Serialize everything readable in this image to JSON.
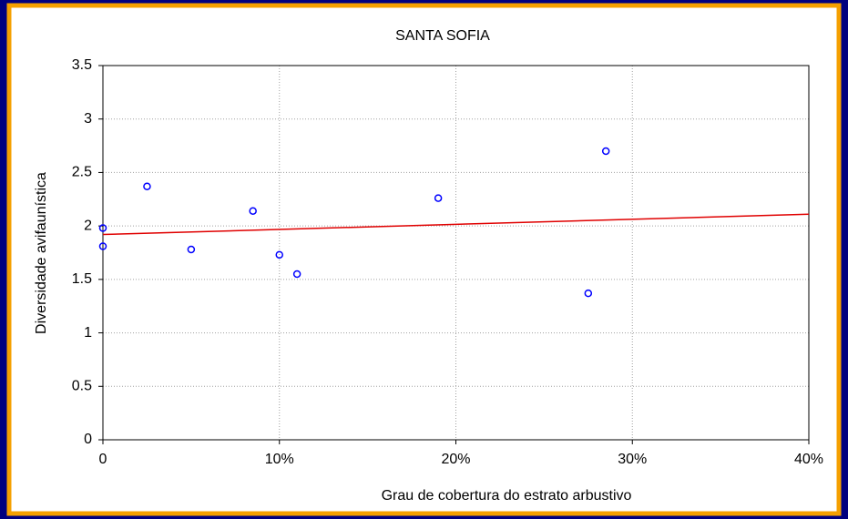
{
  "chart_data": {
    "type": "scatter",
    "title": "SANTA SOFIA",
    "x_label": "Grau de cobertura do estrato arbustivo",
    "y_label": "Diversidade avifaunística",
    "xlim": [
      0,
      40
    ],
    "xticks": [
      0,
      {
        "value": 10,
        "label": "10%"
      },
      {
        "value": 20,
        "label": "20%"
      },
      {
        "value": 30,
        "label": "30%"
      },
      {
        "value": 40,
        "label": "40%"
      }
    ],
    "ylim": [
      0,
      3.5
    ],
    "yticks": [
      0,
      0.5,
      1,
      1.5,
      2,
      2.5,
      3,
      3.5
    ],
    "grid": true,
    "x": [
      0,
      0,
      2.5,
      5,
      8.5,
      10,
      11,
      19,
      27.5,
      28.5
    ],
    "values": [
      1.98,
      1.81,
      2.37,
      1.78,
      2.14,
      1.73,
      1.55,
      2.26,
      1.37,
      2.7
    ],
    "color": "#0000ff",
    "fit": {
      "x": [
        0,
        40
      ],
      "values": [
        1.92,
        2.11
      ],
      "color": "#e00000"
    }
  }
}
